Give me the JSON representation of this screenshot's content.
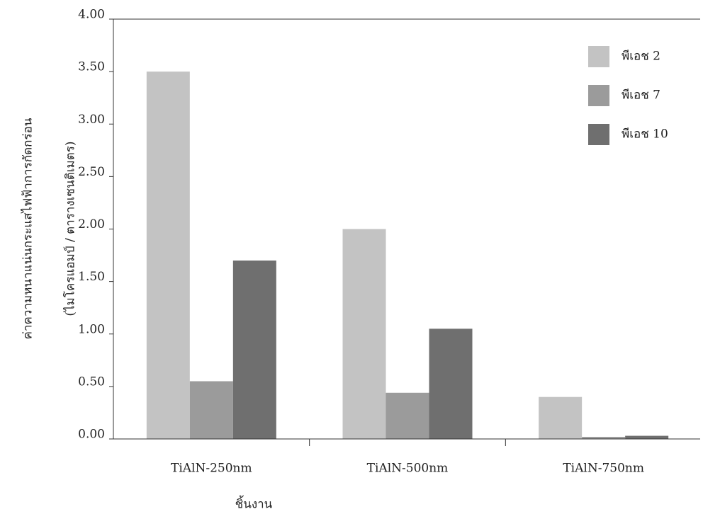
{
  "chart_data": {
    "type": "bar",
    "y_label_lines": [
      "ค่าความหนาแน่นกระแสไฟฟ้าการกัดกร่อน",
      "(ไมโครแอมป์ / ตารางเซนติเมตร)"
    ],
    "x_label": "ชิ้นงาน",
    "categories": [
      "TiAlN-250nm",
      "TiAlN-500nm",
      "TiAlN-750nm"
    ],
    "series": [
      {
        "name": "พีเอช 2",
        "color": "#c3c3c3",
        "values": [
          3.5,
          2.0,
          0.4
        ]
      },
      {
        "name": "พีเอช 7",
        "color": "#9b9b9b",
        "values": [
          0.55,
          0.44,
          0.02
        ]
      },
      {
        "name": "พีเอช 10",
        "color": "#6f6f6f",
        "values": [
          1.7,
          1.05,
          0.03
        ]
      }
    ],
    "ylim": [
      0,
      4
    ],
    "yticks": [
      {
        "value": 0,
        "label": "0.00"
      },
      {
        "value": 0.5,
        "label": "0.50"
      },
      {
        "value": 1,
        "label": "1.00"
      },
      {
        "value": 1.5,
        "label": "1.50"
      },
      {
        "value": 2,
        "label": "2.00"
      },
      {
        "value": 2.5,
        "label": "2.50"
      },
      {
        "value": 3,
        "label": "3.00"
      },
      {
        "value": 3.5,
        "label": "3.50"
      },
      {
        "value": 4,
        "label": "4.00"
      }
    ],
    "legend": "top-right"
  }
}
